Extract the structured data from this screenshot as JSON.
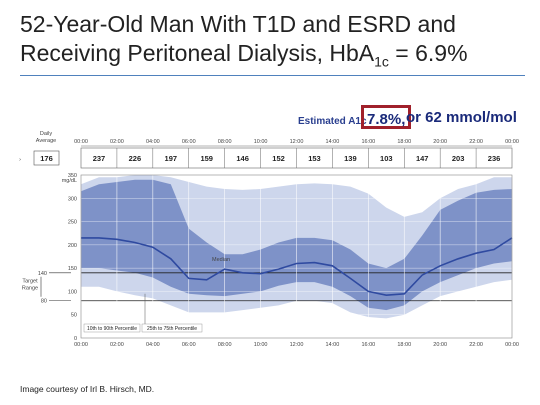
{
  "slide": {
    "title_line1": "52-Year-Old Man With T1D and ESRD and",
    "title_line2_prefix": "Receiving Peritoneal Dialysis, HbA",
    "title_sub": "1c",
    "title_line2_suffix": " = 6.9%",
    "credit": "Image courtesy of Irl B. Hirsch, MD."
  },
  "estimate": {
    "label": "Estimated A1c",
    "value": "7.8%,",
    "rest": "or 62 mmol/mol"
  },
  "colors": {
    "band_outer": "#cdd6ec",
    "band_inner": "#7e92c8",
    "median": "#2f4aa0",
    "box": "#a0202b"
  },
  "chart_data": {
    "type": "area",
    "daily_average_label": "Daily Average",
    "daily_average": "176",
    "y_unit": "mg/dL",
    "target_range_label": "Target Range",
    "target_range": [
      80,
      140
    ],
    "median_label": "Median",
    "legend": [
      "10th to 90th Percentile",
      "25th to 75th Percentile"
    ],
    "ylim": [
      0,
      350
    ],
    "yticks": [
      0,
      50,
      100,
      150,
      200,
      250,
      300,
      350
    ],
    "y_side_ticks": [
      140,
      80
    ],
    "time_ticks": [
      "00:00",
      "02:00",
      "04:00",
      "06:00",
      "08:00",
      "10:00",
      "12:00",
      "14:00",
      "16:00",
      "18:00",
      "20:00",
      "22:00",
      "00:00"
    ],
    "period_averages": [
      "237",
      "226",
      "197",
      "159",
      "146",
      "152",
      "153",
      "139",
      "103",
      "147",
      "203",
      "236"
    ],
    "x_hours": [
      0,
      1,
      2,
      3,
      4,
      5,
      6,
      7,
      8,
      9,
      10,
      11,
      12,
      13,
      14,
      15,
      16,
      17,
      18,
      19,
      20,
      21,
      22,
      23,
      24
    ],
    "median": [
      215,
      215,
      212,
      205,
      195,
      170,
      128,
      125,
      148,
      140,
      138,
      148,
      160,
      162,
      155,
      128,
      100,
      92,
      95,
      135,
      155,
      170,
      182,
      190,
      215
    ],
    "p25": [
      150,
      150,
      145,
      140,
      130,
      110,
      95,
      92,
      90,
      95,
      100,
      112,
      120,
      120,
      110,
      90,
      65,
      60,
      70,
      100,
      120,
      135,
      150,
      160,
      165
    ],
    "p75": [
      315,
      330,
      335,
      340,
      340,
      330,
      235,
      205,
      180,
      180,
      190,
      205,
      215,
      215,
      210,
      190,
      160,
      150,
      170,
      220,
      275,
      295,
      312,
      318,
      320
    ],
    "p10": [
      110,
      110,
      100,
      92,
      85,
      70,
      55,
      55,
      55,
      60,
      65,
      70,
      80,
      80,
      75,
      55,
      45,
      42,
      50,
      70,
      90,
      100,
      110,
      120,
      125
    ],
    "p90": [
      330,
      345,
      345,
      350,
      350,
      345,
      335,
      325,
      320,
      318,
      320,
      325,
      330,
      332,
      330,
      325,
      310,
      280,
      260,
      270,
      300,
      320,
      330,
      345,
      345
    ]
  }
}
